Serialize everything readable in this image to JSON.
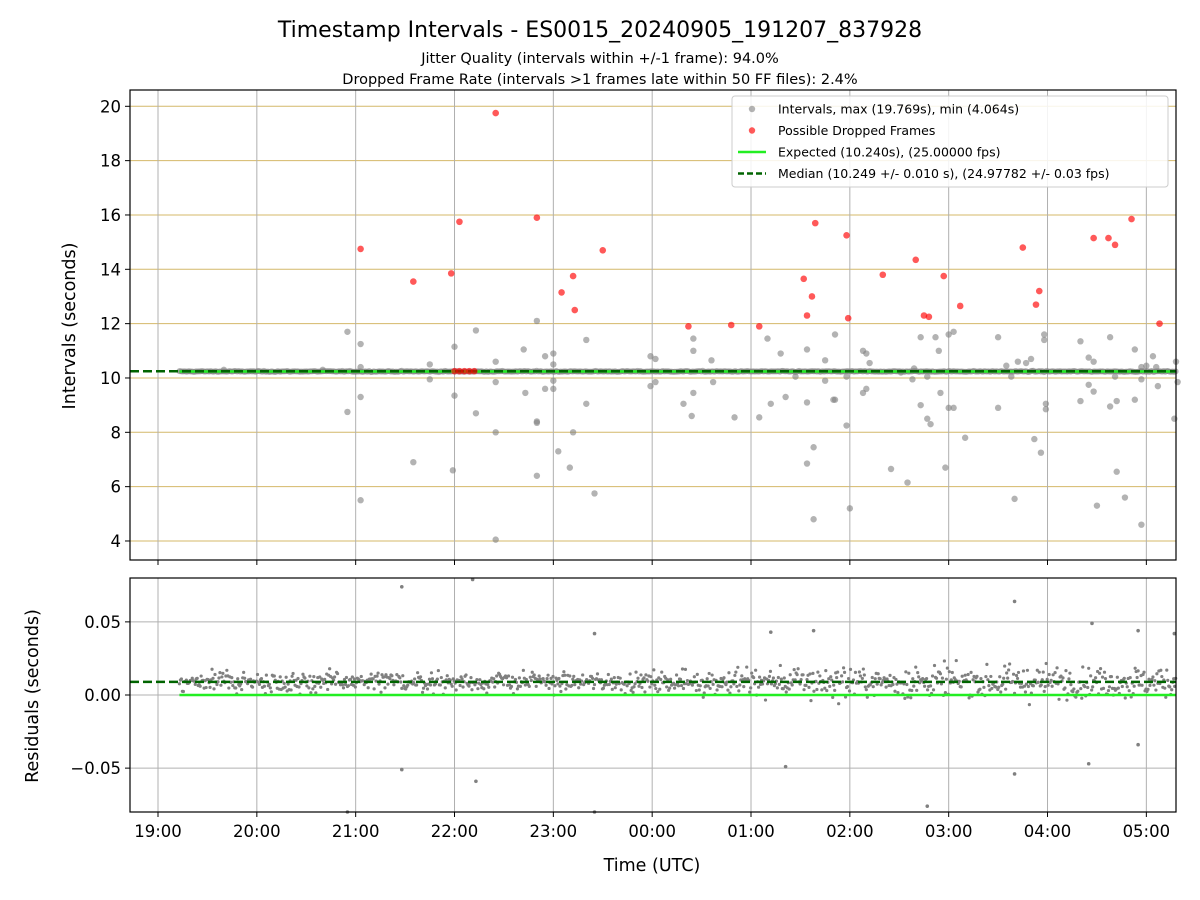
{
  "figure": {
    "title": "Timestamp Intervals - ES0015_20240905_191207_837928",
    "subtitle_1": "Jitter Quality (intervals within +/-1 frame): 94.0%",
    "subtitle_2": "Dropped Frame Rate (intervals >1 frames late within 50 FF files): 2.4%"
  },
  "colors": {
    "intervals": "#808080",
    "dropped": "#ff0000",
    "expected": "#22ee22",
    "median": "#006400",
    "hgrid_top": "#d4b86a",
    "grid": "#b0b0b0"
  },
  "chart_data": [
    {
      "type": "scatter",
      "ylabel": "Intervals (seconds)",
      "ylim": [
        3.3,
        20.6
      ],
      "xlim": [
        "18:43",
        "05:18"
      ],
      "yticks": [
        "4",
        "6",
        "8",
        "10",
        "12",
        "14",
        "16",
        "18",
        "20"
      ],
      "grid": true,
      "legend_position": "upper-right",
      "legend": [
        {
          "label": "Intervals, max (19.769s), min (4.064s)",
          "marker": "grey-dot"
        },
        {
          "label": "Possible Dropped Frames",
          "marker": "red-dot"
        },
        {
          "label": "Expected (10.240s), (25.00000 fps)",
          "line": "solid-green"
        },
        {
          "label": "Median (10.249 +/- 0.010 s), (24.97782 +/- 0.03 fps)",
          "line": "dashed-darkgreen"
        }
      ],
      "expected_interval": 10.24,
      "median_interval": 10.249,
      "series": [
        {
          "name": "Intervals, max (19.769s), min (4.064s)",
          "points": [
            [
              "19:40",
              10.3
            ],
            [
              "20:40",
              10.3
            ],
            [
              "20:55",
              11.7
            ],
            [
              "20:55",
              8.75
            ],
            [
              "21:03",
              11.25
            ],
            [
              "21:03",
              10.4
            ],
            [
              "21:03",
              9.3
            ],
            [
              "21:03",
              5.5
            ],
            [
              "21:35",
              6.9
            ],
            [
              "21:45",
              10.5
            ],
            [
              "21:45",
              9.95
            ],
            [
              "21:59",
              6.6
            ],
            [
              "22:00",
              11.15
            ],
            [
              "22:00",
              9.35
            ],
            [
              "22:13",
              8.7
            ],
            [
              "22:13",
              11.75
            ],
            [
              "22:25",
              10.6
            ],
            [
              "22:25",
              9.85
            ],
            [
              "22:25",
              8.0
            ],
            [
              "22:25",
              4.05
            ],
            [
              "22:42",
              11.05
            ],
            [
              "22:43",
              9.45
            ],
            [
              "22:50",
              12.1
            ],
            [
              "22:50",
              8.4
            ],
            [
              "22:50",
              8.35
            ],
            [
              "22:50",
              6.4
            ],
            [
              "22:55",
              10.8
            ],
            [
              "22:55",
              9.6
            ],
            [
              "23:00",
              10.9
            ],
            [
              "23:00",
              10.5
            ],
            [
              "23:00",
              9.9
            ],
            [
              "23:00",
              9.6
            ],
            [
              "23:03",
              7.3
            ],
            [
              "23:10",
              6.7
            ],
            [
              "23:12",
              8.0
            ],
            [
              "23:20",
              11.4
            ],
            [
              "23:20",
              9.05
            ],
            [
              "23:25",
              5.75
            ],
            [
              "23:59",
              10.8
            ],
            [
              "23:59",
              9.7
            ],
            [
              "00:02",
              10.7
            ],
            [
              "00:02",
              9.85
            ],
            [
              "00:19",
              9.05
            ],
            [
              "00:24",
              8.6
            ],
            [
              "00:25",
              11.45
            ],
            [
              "00:25",
              11.0
            ],
            [
              "00:25",
              9.45
            ],
            [
              "00:36",
              10.65
            ],
            [
              "00:37",
              9.85
            ],
            [
              "00:50",
              8.55
            ],
            [
              "01:05",
              8.55
            ],
            [
              "01:10",
              11.45
            ],
            [
              "01:12",
              9.05
            ],
            [
              "01:18",
              10.9
            ],
            [
              "01:21",
              9.3
            ],
            [
              "01:27",
              10.05
            ],
            [
              "01:34",
              11.05
            ],
            [
              "01:34",
              9.1
            ],
            [
              "01:34",
              6.85
            ],
            [
              "01:38",
              7.45
            ],
            [
              "01:38",
              4.8
            ],
            [
              "01:45",
              10.65
            ],
            [
              "01:45",
              9.9
            ],
            [
              "01:50",
              9.2
            ],
            [
              "01:51",
              11.6
            ],
            [
              "01:51",
              9.2
            ],
            [
              "01:58",
              10.05
            ],
            [
              "01:58",
              8.25
            ],
            [
              "02:00",
              5.2
            ],
            [
              "02:08",
              11.0
            ],
            [
              "02:08",
              9.45
            ],
            [
              "02:10",
              10.9
            ],
            [
              "02:10",
              9.6
            ],
            [
              "02:12",
              10.55
            ],
            [
              "02:25",
              6.65
            ],
            [
              "02:31",
              10.2
            ],
            [
              "02:35",
              6.15
            ],
            [
              "02:38",
              9.95
            ],
            [
              "02:39",
              10.35
            ],
            [
              "02:43",
              11.5
            ],
            [
              "02:43",
              9.0
            ],
            [
              "02:47",
              10.05
            ],
            [
              "02:47",
              8.5
            ],
            [
              "02:49",
              8.3
            ],
            [
              "02:52",
              11.5
            ],
            [
              "02:54",
              11.0
            ],
            [
              "02:55",
              9.45
            ],
            [
              "02:58",
              6.7
            ],
            [
              "03:00",
              11.6
            ],
            [
              "03:00",
              8.9
            ],
            [
              "03:03",
              11.7
            ],
            [
              "03:03",
              8.9
            ],
            [
              "03:10",
              7.8
            ],
            [
              "03:30",
              11.5
            ],
            [
              "03:30",
              8.9
            ],
            [
              "03:35",
              10.45
            ],
            [
              "03:38",
              10.05
            ],
            [
              "03:40",
              5.55
            ],
            [
              "03:42",
              10.6
            ],
            [
              "03:47",
              10.55
            ],
            [
              "03:50",
              10.7
            ],
            [
              "03:52",
              7.75
            ],
            [
              "03:56",
              7.25
            ],
            [
              "03:58",
              11.6
            ],
            [
              "03:58",
              11.4
            ],
            [
              "03:59",
              9.05
            ],
            [
              "03:59",
              8.85
            ],
            [
              "04:20",
              11.35
            ],
            [
              "04:20",
              9.15
            ],
            [
              "04:25",
              10.75
            ],
            [
              "04:25",
              9.75
            ],
            [
              "04:28",
              10.6
            ],
            [
              "04:28",
              9.5
            ],
            [
              "04:30",
              5.3
            ],
            [
              "04:38",
              11.5
            ],
            [
              "04:38",
              8.95
            ],
            [
              "04:41",
              10.05
            ],
            [
              "04:42",
              9.15
            ],
            [
              "04:42",
              6.55
            ],
            [
              "04:47",
              5.6
            ],
            [
              "04:53",
              11.05
            ],
            [
              "04:53",
              9.2
            ],
            [
              "04:57",
              10.4
            ],
            [
              "04:57",
              9.95
            ],
            [
              "04:57",
              4.6
            ],
            [
              "05:00",
              10.45
            ],
            [
              "05:04",
              10.8
            ],
            [
              "05:06",
              10.4
            ],
            [
              "05:07",
              9.7
            ],
            [
              "05:17",
              8.5
            ],
            [
              "05:18",
              10.6
            ],
            [
              "05:19",
              9.85
            ]
          ]
        },
        {
          "name": "Possible Dropped Frames",
          "points": [
            [
              "21:03",
              14.75
            ],
            [
              "21:35",
              13.55
            ],
            [
              "21:58",
              13.85
            ],
            [
              "22:03",
              15.75
            ],
            [
              "22:25",
              19.75
            ],
            [
              "22:50",
              15.9
            ],
            [
              "23:05",
              13.15
            ],
            [
              "23:12",
              13.75
            ],
            [
              "23:13",
              12.5
            ],
            [
              "23:30",
              14.7
            ],
            [
              "00:22",
              11.9
            ],
            [
              "00:48",
              11.95
            ],
            [
              "01:05",
              11.9
            ],
            [
              "01:32",
              13.65
            ],
            [
              "01:34",
              12.3
            ],
            [
              "01:37",
              13.0
            ],
            [
              "01:39",
              15.7
            ],
            [
              "01:58",
              15.25
            ],
            [
              "01:59",
              12.2
            ],
            [
              "02:20",
              13.8
            ],
            [
              "02:40",
              14.35
            ],
            [
              "02:45",
              12.3
            ],
            [
              "02:48",
              12.25
            ],
            [
              "02:57",
              13.75
            ],
            [
              "03:07",
              12.65
            ],
            [
              "03:45",
              14.8
            ],
            [
              "03:53",
              12.7
            ],
            [
              "03:55",
              13.2
            ],
            [
              "04:28",
              15.15
            ],
            [
              "04:37",
              15.15
            ],
            [
              "04:41",
              14.9
            ],
            [
              "04:51",
              15.85
            ],
            [
              "05:08",
              12.0
            ],
            [
              "22:00",
              10.25
            ],
            [
              "22:03",
              10.25
            ],
            [
              "22:06",
              10.25
            ],
            [
              "22:09",
              10.25
            ],
            [
              "22:12",
              10.25
            ]
          ]
        }
      ]
    },
    {
      "type": "scatter",
      "xlabel": "Time (UTC)",
      "ylabel": "Residuals (seconds)",
      "ylim": [
        -0.08,
        0.08
      ],
      "xlim": [
        "18:43",
        "05:18"
      ],
      "yticks": [
        "−0.05",
        "0.00",
        "0.05"
      ],
      "xticks": [
        "19:00",
        "20:00",
        "21:00",
        "22:00",
        "23:00",
        "00:00",
        "01:00",
        "02:00",
        "03:00",
        "04:00",
        "05:00"
      ],
      "grid": true,
      "expected_residual": 0.0,
      "median_residual": 0.009,
      "residual_spread": 0.007,
      "outliers": [
        [
          "21:28",
          0.074
        ],
        [
          "21:28",
          -0.051
        ],
        [
          "22:11",
          0.079
        ],
        [
          "22:13",
          -0.059
        ],
        [
          "20:55",
          -0.08
        ],
        [
          "23:25",
          -0.08
        ],
        [
          "23:25",
          0.042
        ],
        [
          "01:21",
          -0.049
        ],
        [
          "01:12",
          0.043
        ],
        [
          "01:38",
          0.044
        ],
        [
          "02:47",
          -0.076
        ],
        [
          "03:40",
          0.064
        ],
        [
          "03:40",
          -0.054
        ],
        [
          "04:25",
          -0.047
        ],
        [
          "04:27",
          0.049
        ],
        [
          "04:55",
          0.044
        ],
        [
          "04:55",
          -0.034
        ],
        [
          "05:17",
          0.042
        ]
      ]
    }
  ]
}
